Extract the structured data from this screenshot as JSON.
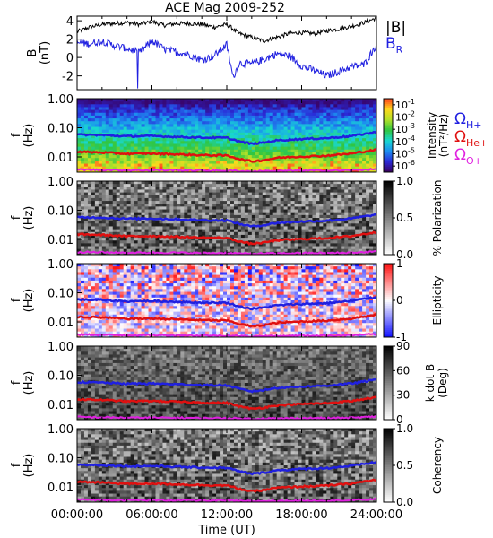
{
  "title": "ACE Mag 2009-252",
  "xaxis": {
    "label": "Time (UT)",
    "ticks": [
      "00:00:00",
      "06:00:00",
      "12:00:00",
      "18:00:00",
      "24:00:00"
    ],
    "range_hours": [
      0,
      24
    ]
  },
  "chart_data": [
    {
      "type": "line",
      "panel": "magnetic-field",
      "ylabel": "B",
      "yunit": "(nT)",
      "ylim": [
        -3.5,
        4.5
      ],
      "yticks": [
        "4",
        "2",
        "0",
        "-2"
      ],
      "series": [
        {
          "name": "|B|",
          "color": "#000000",
          "x_hours": [
            0,
            1,
            2,
            3,
            4,
            5,
            6,
            7,
            8,
            9,
            10,
            11,
            12,
            12.5,
            13,
            14,
            15,
            16,
            17,
            18,
            19,
            20,
            21,
            22,
            23,
            24
          ],
          "values": [
            2.8,
            3.3,
            3.6,
            3.7,
            3.8,
            3.6,
            3.9,
            3.5,
            3.7,
            3.7,
            3.6,
            3.3,
            3.6,
            3.1,
            2.6,
            2.2,
            1.8,
            2.2,
            2.6,
            2.7,
            2.6,
            2.9,
            3.1,
            3.4,
            3.8,
            4.3
          ]
        },
        {
          "name": "B",
          "subscript": "R",
          "color": "#2020e0",
          "x_hours": [
            0,
            1,
            2,
            3,
            4,
            5,
            6,
            7,
            8,
            9,
            10,
            11,
            12,
            12.5,
            13,
            14,
            15,
            16,
            17,
            18,
            19,
            20,
            21,
            22,
            23,
            24
          ],
          "values": [
            1.6,
            1.5,
            1.8,
            1.3,
            1.0,
            0.5,
            1.8,
            0.9,
            0.6,
            0.3,
            -0.3,
            0.2,
            1.4,
            -2.2,
            -0.6,
            -0.7,
            -0.2,
            0.4,
            0.2,
            -0.9,
            -1.4,
            -2.0,
            -1.5,
            -1.0,
            -0.8,
            1.4
          ]
        }
      ]
    },
    {
      "type": "heatmap",
      "panel": "intensity",
      "ylabel": "f",
      "yunit": "(Hz)",
      "yscale": "log",
      "ylim": [
        0.003,
        1.0
      ],
      "yticks": [
        "1.00",
        "0.10",
        "0.01"
      ],
      "colorbar": {
        "label": "Intensity",
        "unit": "(nT²/Hz)",
        "colors": [
          "#3a005c",
          "#2a2ad8",
          "#1c8ef0",
          "#19d8d0",
          "#30c640",
          "#b4e028",
          "#ffd81c",
          "#ff3a1c"
        ],
        "ticks": [
          {
            "base": "10",
            "exp": "-1",
            "value": 0.1
          },
          {
            "base": "10",
            "exp": "-2",
            "value": 0.01
          },
          {
            "base": "10",
            "exp": "-3",
            "value": 0.001
          },
          {
            "base": "10",
            "exp": "-4",
            "value": 0.0001
          },
          {
            "base": "10",
            "exp": "-5",
            "value": 1e-05
          },
          {
            "base": "10",
            "exp": "-6",
            "value": 1e-06
          }
        ]
      },
      "legend": [
        {
          "symbol": "Ω",
          "subscript": "H+",
          "color": "#2020e0"
        },
        {
          "symbol": "Ω",
          "subscript": "He+",
          "color": "#e01010"
        },
        {
          "symbol": "Ω",
          "subscript": "O+",
          "color": "#e020e0"
        }
      ]
    },
    {
      "type": "heatmap",
      "panel": "polarization",
      "ylabel": "f",
      "yunit": "(Hz)",
      "yscale": "log",
      "ylim": [
        0.003,
        1.0
      ],
      "yticks": [
        "1.00",
        "0.10",
        "0.01"
      ],
      "colorbar": {
        "label": "% Polarization",
        "colors": [
          "#ffffff",
          "#000000"
        ],
        "ticks": [
          {
            "text": "1.0",
            "value": 1.0
          },
          {
            "text": "0.5",
            "value": 0.5
          },
          {
            "text": "0.0",
            "value": 0.0
          }
        ],
        "range": [
          0,
          1
        ]
      }
    },
    {
      "type": "heatmap",
      "panel": "ellipticity",
      "ylabel": "f",
      "yunit": "(Hz)",
      "yscale": "log",
      "ylim": [
        0.003,
        1.0
      ],
      "yticks": [
        "1.00",
        "0.10",
        "0.01"
      ],
      "colorbar": {
        "label": "Ellipticity",
        "colors": [
          "#1010ff",
          "#ffffff",
          "#ff1010"
        ],
        "ticks": [
          {
            "text": "1",
            "value": 1
          },
          {
            "text": "0",
            "value": 0
          },
          {
            "text": "-1",
            "value": -1
          }
        ],
        "range": [
          -1,
          1
        ]
      }
    },
    {
      "type": "heatmap",
      "panel": "k-dot-b",
      "ylabel": "f",
      "yunit": "(Hz)",
      "yscale": "log",
      "ylim": [
        0.003,
        1.0
      ],
      "yticks": [
        "1.00",
        "0.10",
        "0.01"
      ],
      "colorbar": {
        "label": "k dot B",
        "unit": "(Deg)",
        "colors": [
          "#ffffff",
          "#000000"
        ],
        "ticks": [
          {
            "text": "90",
            "value": 90
          },
          {
            "text": "60",
            "value": 60
          },
          {
            "text": "30",
            "value": 30
          },
          {
            "text": "0",
            "value": 0
          }
        ],
        "range": [
          0,
          90
        ]
      }
    },
    {
      "type": "heatmap",
      "panel": "coherency",
      "ylabel": "f",
      "yunit": "(Hz)",
      "yscale": "log",
      "ylim": [
        0.003,
        1.0
      ],
      "yticks": [
        "1.00",
        "0.10",
        "0.01"
      ],
      "colorbar": {
        "label": "Coherency",
        "colors": [
          "#ffffff",
          "#000000"
        ],
        "ticks": [
          {
            "text": "1.0",
            "value": 1.0
          },
          {
            "text": "0.5",
            "value": 0.5
          },
          {
            "text": "0.0",
            "value": 0.0
          }
        ],
        "range": [
          0,
          1
        ]
      }
    }
  ],
  "gyrofrequency_lines": {
    "x_hours": [
      0,
      2,
      4,
      6,
      8,
      10,
      12,
      13,
      14,
      15,
      16,
      18,
      20,
      22,
      24
    ],
    "series": [
      {
        "name": "H+",
        "color": "#2020e0",
        "values": [
          0.058,
          0.056,
          0.051,
          0.052,
          0.049,
          0.046,
          0.045,
          0.034,
          0.028,
          0.031,
          0.037,
          0.041,
          0.044,
          0.052,
          0.07
        ]
      },
      {
        "name": "He+",
        "color": "#e01010",
        "values": [
          0.015,
          0.0142,
          0.0128,
          0.0131,
          0.0123,
          0.0115,
          0.0112,
          0.0085,
          0.007,
          0.0078,
          0.0093,
          0.0103,
          0.011,
          0.013,
          0.0175
        ]
      },
      {
        "name": "O+",
        "color": "#e020e0",
        "values": [
          0.0037,
          0.0036,
          0.0035,
          0.0035,
          0.0035,
          0.0034,
          0.0034,
          0.0033,
          0.0032,
          0.0033,
          0.0033,
          0.0034,
          0.0034,
          0.0035,
          0.0038
        ]
      }
    ]
  }
}
